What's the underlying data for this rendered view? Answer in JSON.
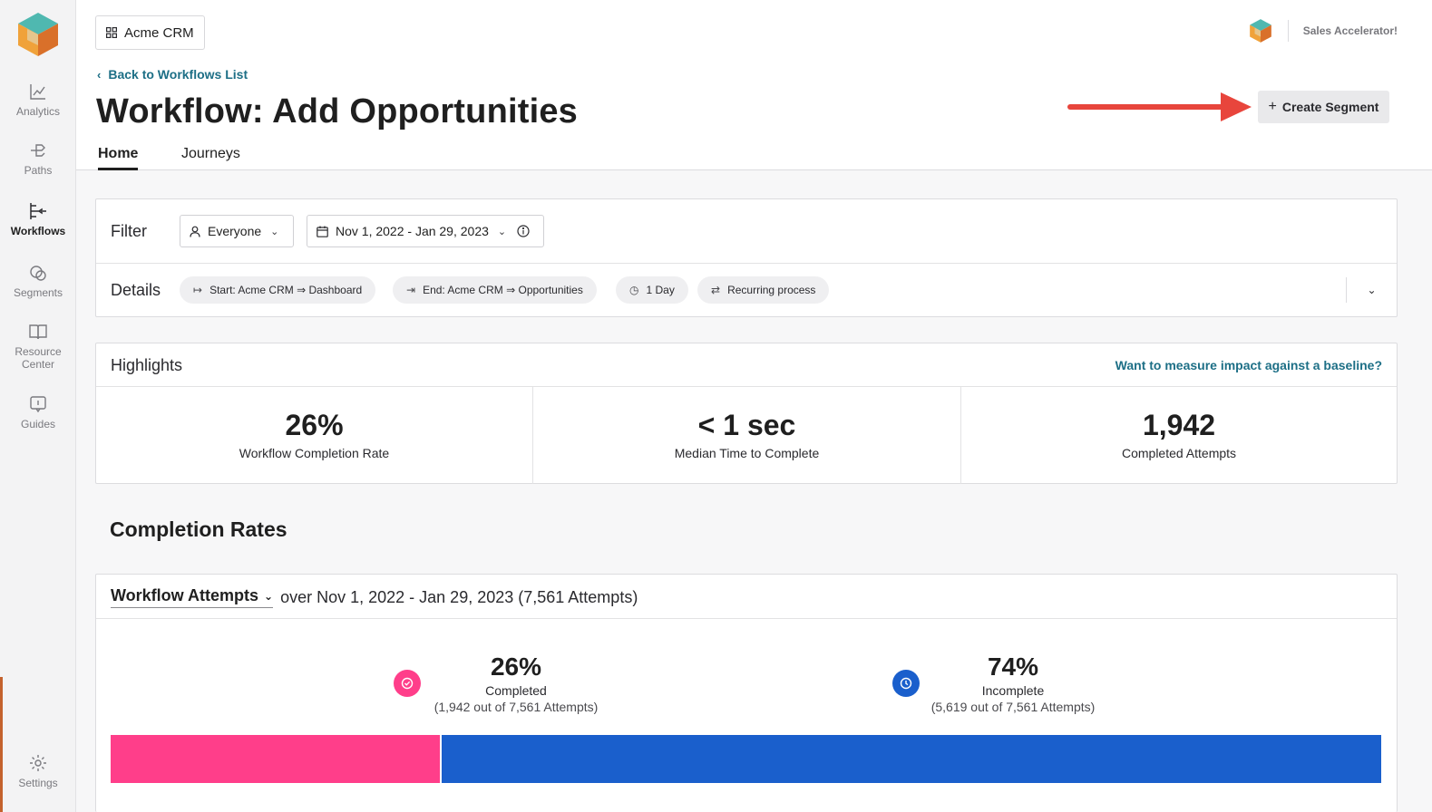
{
  "sidebar": {
    "items": [
      {
        "label": "Analytics",
        "icon": "line-chart-icon"
      },
      {
        "label": "Paths",
        "icon": "paths-icon"
      },
      {
        "label": "Workflows",
        "icon": "workflows-icon",
        "active": true
      },
      {
        "label": "Segments",
        "icon": "segments-icon"
      },
      {
        "label": "Resource",
        "label2": "Center",
        "icon": "book-icon"
      },
      {
        "label": "Guides",
        "icon": "guide-icon"
      }
    ],
    "settings_label": "Settings"
  },
  "header": {
    "app_name": "Acme CRM",
    "account_name": "Sales Accelerator!",
    "back_link": "Back to Workflows List",
    "title": "Workflow: Add Opportunities",
    "create_segment_label": "Create Segment"
  },
  "tabs": [
    {
      "label": "Home",
      "active": true
    },
    {
      "label": "Journeys",
      "active": false
    }
  ],
  "filter": {
    "label": "Filter",
    "audience": "Everyone",
    "date_range": "Nov 1, 2022 - Jan 29, 2023"
  },
  "details": {
    "label": "Details",
    "start": "Start: Acme CRM ⇒ Dashboard",
    "end": "End: Acme CRM ⇒ Opportunities",
    "duration": "1 Day",
    "recurrence": "Recurring process"
  },
  "highlights": {
    "title": "Highlights",
    "baseline_link": "Want to measure impact against a baseline?",
    "metrics": [
      {
        "value": "26%",
        "label": "Workflow Completion Rate"
      },
      {
        "value": "< 1 sec",
        "label": "Median Time to Complete"
      },
      {
        "value": "1,942",
        "label": "Completed Attempts"
      }
    ]
  },
  "completion": {
    "section_title": "Completion Rates",
    "metric_select": "Workflow Attempts",
    "range_text": "over Nov 1, 2022 - Jan 29, 2023 (7,561 Attempts)",
    "completed": {
      "percent": "26%",
      "label": "Completed",
      "detail": "(1,942 out of 7,561 Attempts)",
      "fraction": 0.26,
      "color": "#ff3e8a"
    },
    "incomplete": {
      "percent": "74%",
      "label": "Incomplete",
      "detail": "(5,619 out of 7,561 Attempts)",
      "fraction": 0.74,
      "color": "#1a5fcc"
    }
  },
  "colors": {
    "accent_link": "#1d6f86",
    "annotation_arrow": "#e8453c"
  }
}
